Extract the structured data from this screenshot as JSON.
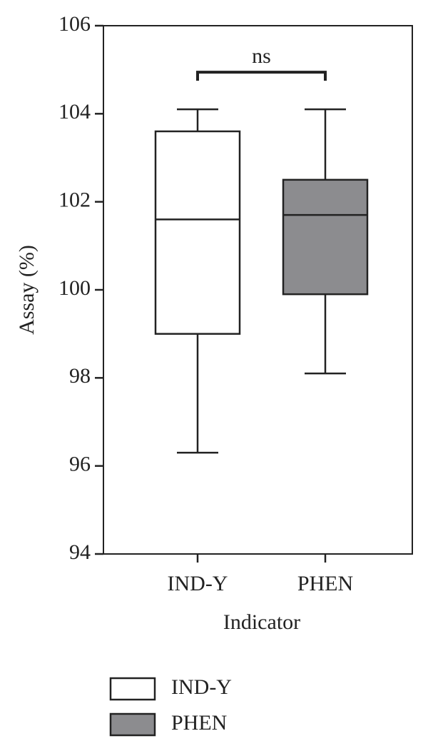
{
  "chart_data": {
    "type": "box",
    "xlabel": "Indicator",
    "ylabel": "Assay (%)",
    "annotation": "ns",
    "categories": [
      "IND-Y",
      "PHEN"
    ],
    "series": [
      {
        "name": "IND-Y",
        "color": "#ffffff",
        "min": 96.3,
        "q1": 99.0,
        "median": 101.6,
        "q3": 103.6,
        "max": 104.1
      },
      {
        "name": "PHEN",
        "color": "#8c8c8f",
        "min": 98.1,
        "q1": 99.9,
        "median": 101.7,
        "q3": 102.5,
        "max": 104.1
      }
    ],
    "ylim": [
      94,
      106
    ],
    "yticks": [
      94,
      96,
      98,
      100,
      102,
      104,
      106
    ]
  }
}
